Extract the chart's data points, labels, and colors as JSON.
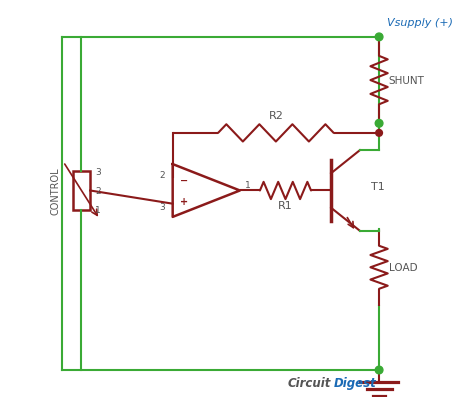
{
  "bg_color": "#ffffff",
  "gc": "#3aaa35",
  "dc": "#8b1a1a",
  "blue": "#1a6ab5",
  "gray": "#555555",
  "figsize": [
    4.74,
    4.06
  ],
  "dpi": 100,
  "xlim": [
    0,
    47.4
  ],
  "ylim": [
    0,
    40.6
  ]
}
